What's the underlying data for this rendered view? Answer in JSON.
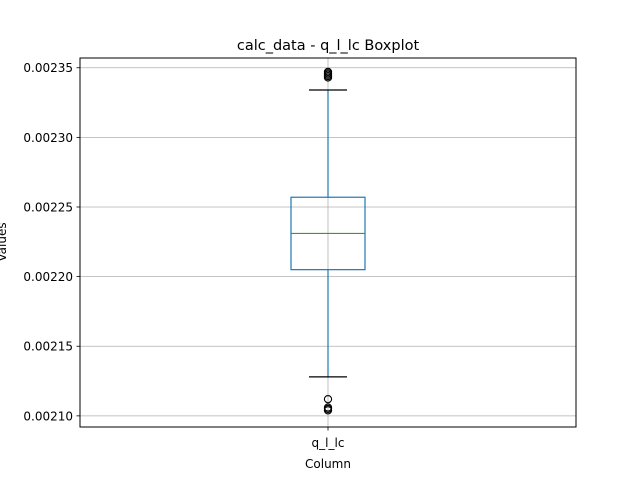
{
  "chart_data": {
    "type": "boxplot",
    "title": "calc_data - q_l_lc Boxplot",
    "xlabel": "Column",
    "ylabel": "Values",
    "categories": [
      "q_l_lc"
    ],
    "ylim": [
      0.002092,
      0.002357
    ],
    "yticks": [
      {
        "value": 0.0021,
        "label": "0.00210"
      },
      {
        "value": 0.00215,
        "label": "0.00215"
      },
      {
        "value": 0.0022,
        "label": "0.00220"
      },
      {
        "value": 0.00225,
        "label": "0.00225"
      },
      {
        "value": 0.0023,
        "label": "0.00230"
      },
      {
        "value": 0.00235,
        "label": "0.00235"
      }
    ],
    "grid": true,
    "boxes": [
      {
        "category": "q_l_lc",
        "whisker_low": 0.002128,
        "q1": 0.002205,
        "median": 0.002231,
        "q3": 0.002257,
        "whisker_high": 0.002334,
        "outliers": [
          0.002105,
          0.002104,
          0.002106,
          0.002112,
          0.002343,
          0.002344,
          0.002345,
          0.002346,
          0.002347
        ]
      }
    ],
    "colors": {
      "box": "#1f77b4",
      "median": "#2ca02c",
      "cap": "#000000",
      "outlier": "#000000",
      "grid": "#b0b0b0"
    }
  }
}
